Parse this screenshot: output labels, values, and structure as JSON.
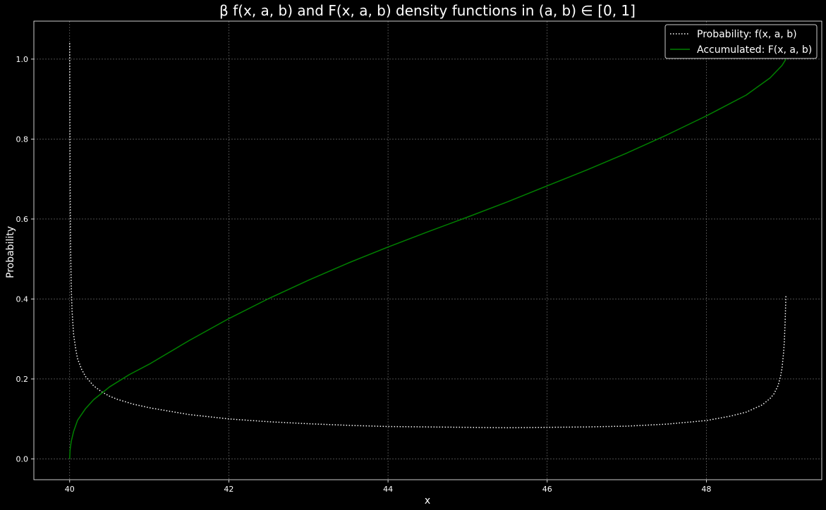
{
  "chart_data": {
    "type": "line",
    "title": "β f(x, a, b) and F(x, a, b) density functions in (a, b) ∈ [0, 1]",
    "xlabel": "x",
    "ylabel": "Probability",
    "xlim": [
      39.55,
      49.45
    ],
    "ylim": [
      -0.052,
      1.095
    ],
    "x_ticks": [
      "40",
      "42",
      "44",
      "46",
      "48"
    ],
    "y_ticks": [
      "0.0",
      "0.2",
      "0.4",
      "0.6",
      "0.8",
      "1.0"
    ],
    "grid": true,
    "legend_position": "upper-right",
    "series": [
      {
        "name": "Probability: f(x, a, b)",
        "color": "#ffffff",
        "style": "dotted",
        "x": [
          40.0,
          40.002,
          40.005,
          40.01,
          40.02,
          40.03,
          40.05,
          40.08,
          40.1,
          40.15,
          40.2,
          40.3,
          40.4,
          40.5,
          40.6,
          40.8,
          41.0,
          41.5,
          42.0,
          42.5,
          43.0,
          43.5,
          44.0,
          44.5,
          45.0,
          45.5,
          46.0,
          46.5,
          47.0,
          47.5,
          48.0,
          48.3,
          48.5,
          48.7,
          48.8,
          48.85,
          48.9,
          48.93,
          48.95,
          48.97,
          48.98,
          48.99,
          49.0
        ],
        "y": [
          1.04,
          0.9,
          0.72,
          0.55,
          0.43,
          0.37,
          0.31,
          0.27,
          0.25,
          0.224,
          0.206,
          0.183,
          0.168,
          0.157,
          0.149,
          0.137,
          0.128,
          0.111,
          0.1,
          0.093,
          0.088,
          0.084,
          0.081,
          0.08,
          0.079,
          0.078,
          0.079,
          0.08,
          0.082,
          0.087,
          0.096,
          0.107,
          0.117,
          0.135,
          0.151,
          0.163,
          0.183,
          0.205,
          0.226,
          0.265,
          0.295,
          0.345,
          0.41
        ]
      },
      {
        "name": "Accumulated: F(x, a, b)",
        "color": "#008000",
        "style": "solid",
        "x": [
          40.0,
          40.005,
          40.02,
          40.05,
          40.1,
          40.2,
          40.3,
          40.5,
          40.75,
          41.0,
          41.5,
          42.0,
          42.5,
          43.0,
          43.5,
          44.0,
          44.5,
          45.0,
          45.5,
          46.0,
          46.5,
          47.0,
          47.5,
          48.0,
          48.5,
          48.8,
          48.95,
          49.0
        ],
        "y": [
          0.0,
          0.022,
          0.044,
          0.069,
          0.097,
          0.126,
          0.148,
          0.18,
          0.211,
          0.237,
          0.296,
          0.351,
          0.401,
          0.447,
          0.49,
          0.53,
          0.568,
          0.605,
          0.643,
          0.683,
          0.723,
          0.765,
          0.81,
          0.858,
          0.91,
          0.953,
          0.984,
          1.0
        ]
      }
    ]
  }
}
